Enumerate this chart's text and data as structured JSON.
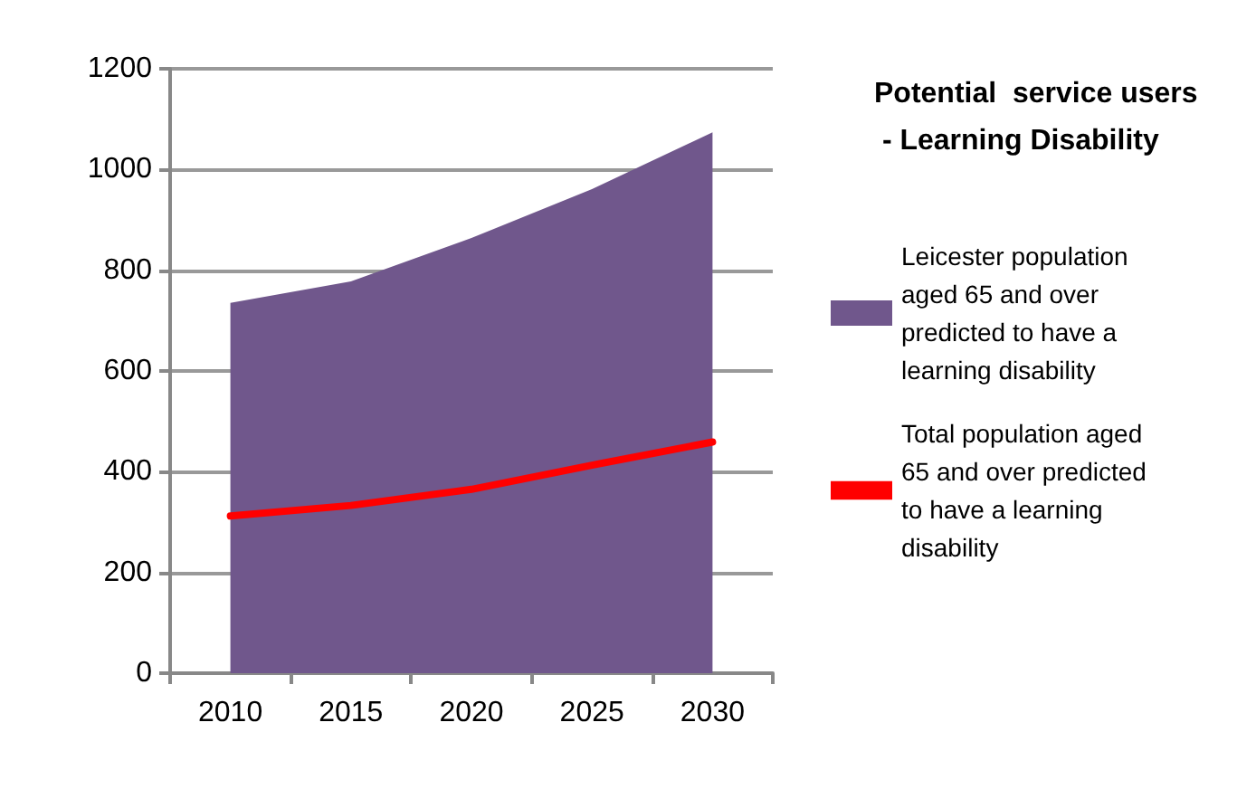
{
  "chart_data": {
    "type": "area",
    "title": "Potential  service users - Learning Disability",
    "categories": [
      "2010",
      "2015",
      "2020",
      "2025",
      "2030"
    ],
    "series": [
      {
        "name": "Leicester population aged 65 and over predicted to have a learning disability",
        "color": "#70578c",
        "values": [
          735,
          778,
          864,
          961,
          1074
        ]
      },
      {
        "name": "Total population aged 65 and over predicted to have a learning disability",
        "type": "line",
        "color": "#ff0000",
        "values": [
          312,
          333,
          365,
          413,
          459
        ]
      }
    ],
    "ylim": [
      0,
      1200
    ],
    "yticks": [
      0,
      200,
      400,
      600,
      800,
      1000,
      1200
    ],
    "grid": "y",
    "legend": "right",
    "marker": "none",
    "line_style": "solid"
  }
}
